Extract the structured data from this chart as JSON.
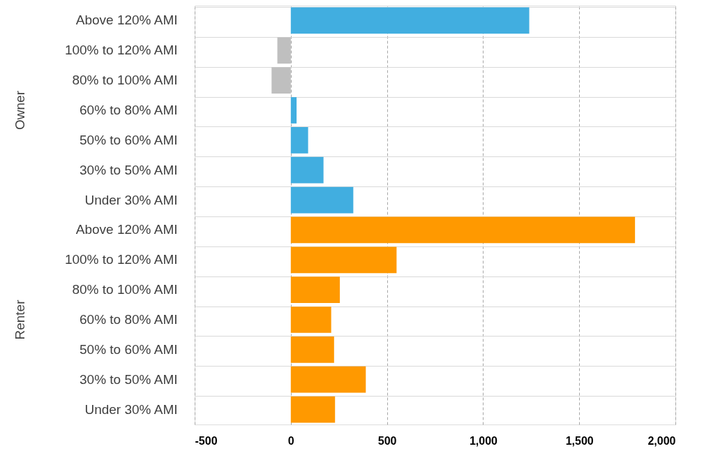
{
  "chart_data": {
    "type": "bar",
    "orientation": "horizontal",
    "categories": [
      "Above 120% AMI",
      "100% to 120% AMI",
      "80% to 100% AMI",
      "60% to 80% AMI",
      "50% to 60% AMI",
      "30% to 50% AMI",
      "Under 30% AMI",
      "Above 120% AMI",
      "100% to 120% AMI",
      "80% to 100% AMI",
      "60% to 80% AMI",
      "50% to 60% AMI",
      "30% to 50% AMI",
      "Under 30% AMI"
    ],
    "values": [
      1240,
      -70,
      -100,
      30,
      90,
      170,
      325,
      1790,
      550,
      255,
      210,
      225,
      390,
      230
    ],
    "colors": [
      "#41aee0",
      "#bfbfbf",
      "#bfbfbf",
      "#41aee0",
      "#41aee0",
      "#41aee0",
      "#41aee0",
      "#ff9900",
      "#ff9900",
      "#ff9900",
      "#ff9900",
      "#ff9900",
      "#ff9900",
      "#ff9900"
    ],
    "xlim": [
      -500,
      2000
    ],
    "xticks": [
      -500,
      0,
      500,
      {
        "value": 1000,
        "label": "1,000"
      },
      {
        "value": 1500,
        "label": "1,500"
      },
      {
        "value": 2000,
        "label": "2,000"
      }
    ],
    "annotations": [
      "Owner",
      "Renter"
    ],
    "grid": true
  }
}
